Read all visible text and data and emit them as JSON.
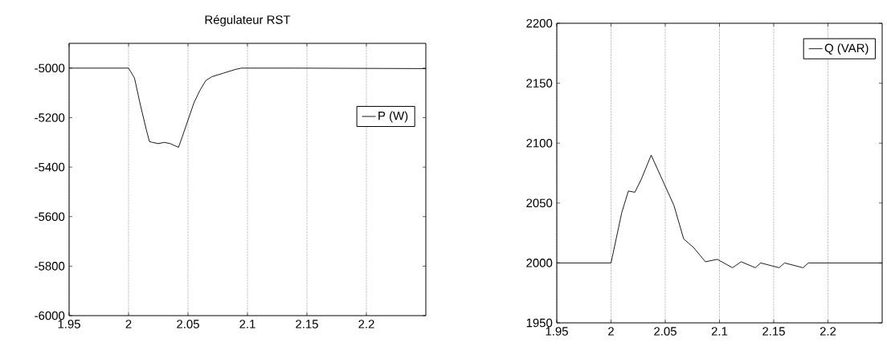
{
  "chart_data": [
    {
      "type": "line",
      "title": "Régulateur RST",
      "x": [
        1.95,
        2.0,
        2.005,
        2.01,
        2.015,
        2.0176,
        2.02,
        2.025,
        2.03,
        2.035,
        2.042,
        2.045,
        2.05,
        2.055,
        2.06,
        2.065,
        2.07,
        2.08,
        2.09,
        2.095,
        2.14,
        2.25
      ],
      "series": [
        {
          "name": "P (W)",
          "color": "#000000",
          "values": [
            -5000,
            -5000,
            -5040,
            -5150,
            -5250,
            -5297,
            -5300,
            -5305,
            -5300,
            -5305,
            -5320,
            -5280,
            -5210,
            -5140,
            -5090,
            -5050,
            -5035,
            -5020,
            -5005,
            -5000,
            -5000,
            -5002
          ]
        }
      ],
      "xlim": [
        1.95,
        2.25
      ],
      "ylim": [
        -6000,
        -4900
      ],
      "xticks": [
        1.95,
        2,
        2.05,
        2.1,
        2.15,
        2.2
      ],
      "yticks": [
        -6000,
        -5800,
        -5600,
        -5400,
        -5200,
        -5000
      ],
      "grid": "x",
      "legend": "right"
    },
    {
      "type": "line",
      "x": [
        1.95,
        2.0,
        2.0099,
        2.016,
        2.022,
        2.028,
        2.037,
        2.049,
        2.058,
        2.067,
        2.076,
        2.087,
        2.098,
        2.112,
        2.12,
        2.133,
        2.138,
        2.155,
        2.16,
        2.177,
        2.182,
        2.25
      ],
      "series": [
        {
          "name": "Q (VAR)",
          "color": "#000000",
          "values": [
            2000,
            2000,
            2042,
            2060,
            2059,
            2070,
            2090,
            2066,
            2048,
            2020,
            2013,
            2001,
            2003,
            1996,
            2001,
            1996,
            2000,
            1996,
            2000,
            1996,
            2000,
            2000
          ]
        }
      ],
      "xlim": [
        1.95,
        2.25
      ],
      "ylim": [
        1950,
        2200
      ],
      "xticks": [
        1.95,
        2,
        2.05,
        2.1,
        2.15,
        2.2
      ],
      "yticks": [
        1950,
        2000,
        2050,
        2100,
        2150,
        2200
      ],
      "grid": "x",
      "legend": "top right"
    }
  ]
}
